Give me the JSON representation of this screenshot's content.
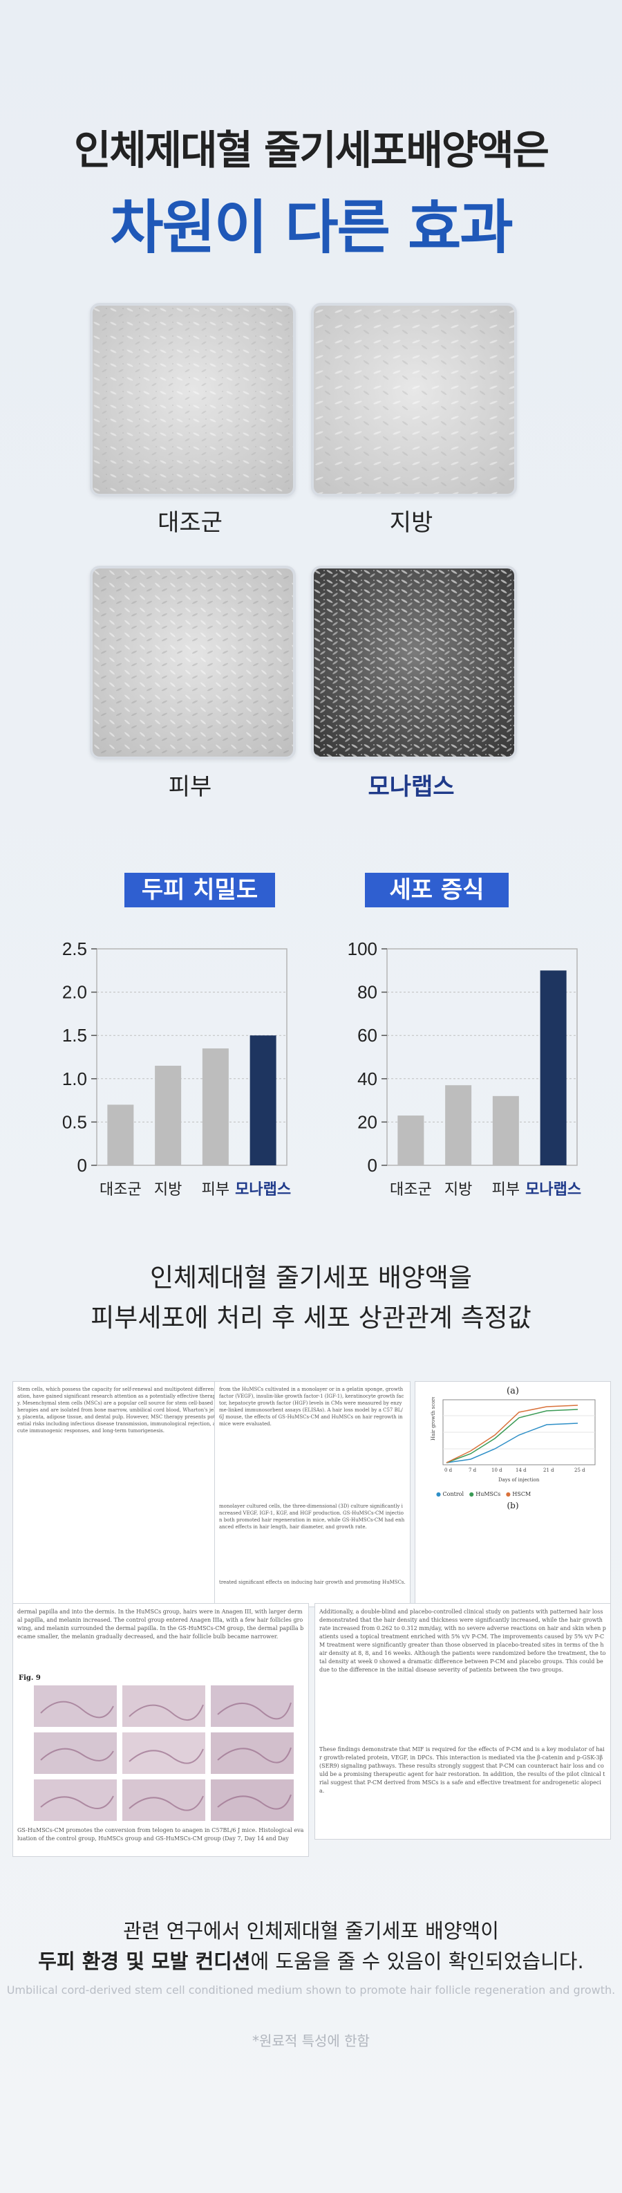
{
  "header": {
    "line1": "인체제대혈 줄기세포배양액은",
    "line2": "차원이 다른 효과"
  },
  "cells": [
    {
      "label": "대조군",
      "highlight": false
    },
    {
      "label": "지방",
      "highlight": false
    },
    {
      "label": "피부",
      "highlight": false
    },
    {
      "label": "모나랩스",
      "highlight": true
    }
  ],
  "colors": {
    "accent_blue": "#1f58b8",
    "badge_blue": "#2f5fd0",
    "bar_gray": "#bdbdbd",
    "bar_navy": "#1e3560"
  },
  "chart_data": [
    {
      "type": "bar",
      "title": "두피 치밀도",
      "categories": [
        "대조군",
        "지방",
        "피부",
        "모나랩스"
      ],
      "values": [
        0.7,
        1.15,
        1.35,
        1.5
      ],
      "ylim": [
        0,
        2.5
      ],
      "yticks": [
        "0",
        "0.5",
        "1.0",
        "1.5",
        "2.0",
        "2.5"
      ],
      "grid": true
    },
    {
      "type": "bar",
      "title": "세포 증식",
      "categories": [
        "대조군",
        "지방",
        "피부",
        "모나랩스"
      ],
      "values": [
        23,
        37,
        32,
        90
      ],
      "ylim": [
        0,
        100
      ],
      "yticks": [
        "0",
        "20",
        "40",
        "60",
        "80",
        "100"
      ],
      "grid": true
    }
  ],
  "middle": {
    "line1": "인체제대혈 줄기세포 배양액을",
    "line2": "피부세포에 처리 후 세포 상관관계 측정값"
  },
  "papers": {
    "p1": "Stem cells, which possess the capacity for self-renewal and multipotent differentiation, have gained significant research attention as a potentially effective therapy. Mesenchymal stem cells (MSCs) are a popular cell source for stem cell-based therapies and are isolated from bone marrow, umbilical cord blood, Wharton's jelly, placenta, adipose tissue, and dental pulp. However, MSC therapy presents potential risks including infectious disease transmission, immunological rejection, acute immunogenic responses, and long-term tumorigenesis.",
    "p2": "from the HuMSCs cultivated in a monolayer or in a gelatin sponge, growth factor (VEGF), insulin-like growth factor-1 (IGF-1), keratinocyte growth factor, hepatocyte growth factor (HGF) levels in CMs were measured by enzyme-linked immunosorbent assays (ELISAs). A hair loss model by a C57 BL/6J mouse, the effects of GS-HuMSCs-CM and HuMSCs on hair regrowth in mice were evaluated.",
    "p2b": "monolayer cultured cells, the three-dimensional (3D) culture significantly increased VEGF, IGF-1, KGF, and HGF production. GS-HuMSCs-CM injection both promoted hair regeneration in mice, while GS-HuMSCs-CM had enhanced effects in hair length, hair diameter, and growth rate.",
    "p2c": "treated significant effects on inducing hair growth and promoting HuMSCs.",
    "chart_label": "(b)",
    "chart_title": "(a)",
    "chart_ylabel": "Hair growth score",
    "chart_xlabel": "Days of injection",
    "chart_xticks": [
      "0 d",
      "7 d",
      "10 d",
      "14 d",
      "21 d",
      "25 d"
    ],
    "chart_legend": [
      "Control",
      "HuMSCs",
      "HSCM"
    ],
    "p3b": "Additionally, a double-blind and placebo-controlled clinical study on patients with patterned hair loss demonstrated that the hair density and thickness were significantly increased, while the hair growth rate increased from 0.262 to 0.312 mm/day, with no severe adverse reactions on hair and skin when patients used a topical treatment enriched with 5% v/v P-CM. The improvements caused by 5% v/v P-CM treatment were significantly greater than those observed in placebo-treated sites in terms of the hair density at 8, 8, and 16 weeks. Although the patients were randomized before the treatment, the total density at week 0 showed a dramatic difference between P-CM and placebo groups. This could be due to the difference in the initial disease severity of patients between the two groups.",
    "p4": "dermal papilla and into the dermis. In the HuMSCs group, hairs were in Anagen III, with larger dermal papilla, and melanin increased. The control group entered Anagen IIIa, with a few hair follicles growing, and melanin surrounded the dermal papilla. In the GS-HuMSCs-CM group, the dermal papilla became smaller, the melanin gradually decreased, and the hair follicle bulb became narrower.",
    "fig_label": "Fig. 9",
    "fig_caption": "GS-HuMSCs-CM promotes the conversion from telogen to anagen in C57BL/6 J mice. Histological evaluation of the control group, HuMSCs group and GS-HuMSCs-CM group (Day 7, Day 14 and Day",
    "p5": "These findings demonstrate that MIF is required for the effects of P-CM and is a key modulator of hair growth-related protein, VEGF, in DPCs. This interaction is mediated via the β-catenin and p-GSK-3β (SER9) signaling pathways. These results strongly suggest that P-CM can counteract hair loss and could be a promising therapeutic agent for hair restoration. In addition, the results of the pilot clinical trial suggest that P-CM derived from MSCs is a safe and effective treatment for androgenetic alopecia."
  },
  "footer": {
    "line1": "관련 연구에서 인체제대혈 줄기세포 배양액이",
    "line2_bold": "두피 환경 및 모발 컨디션",
    "line2_rest": "에 도움을 줄 수 있음이 확인되었습니다.",
    "english": "Umbilical cord-derived stem cell conditioned medium shown to promote hair follicle regeneration and growth.",
    "note": "*원료적 특성에 한함"
  }
}
